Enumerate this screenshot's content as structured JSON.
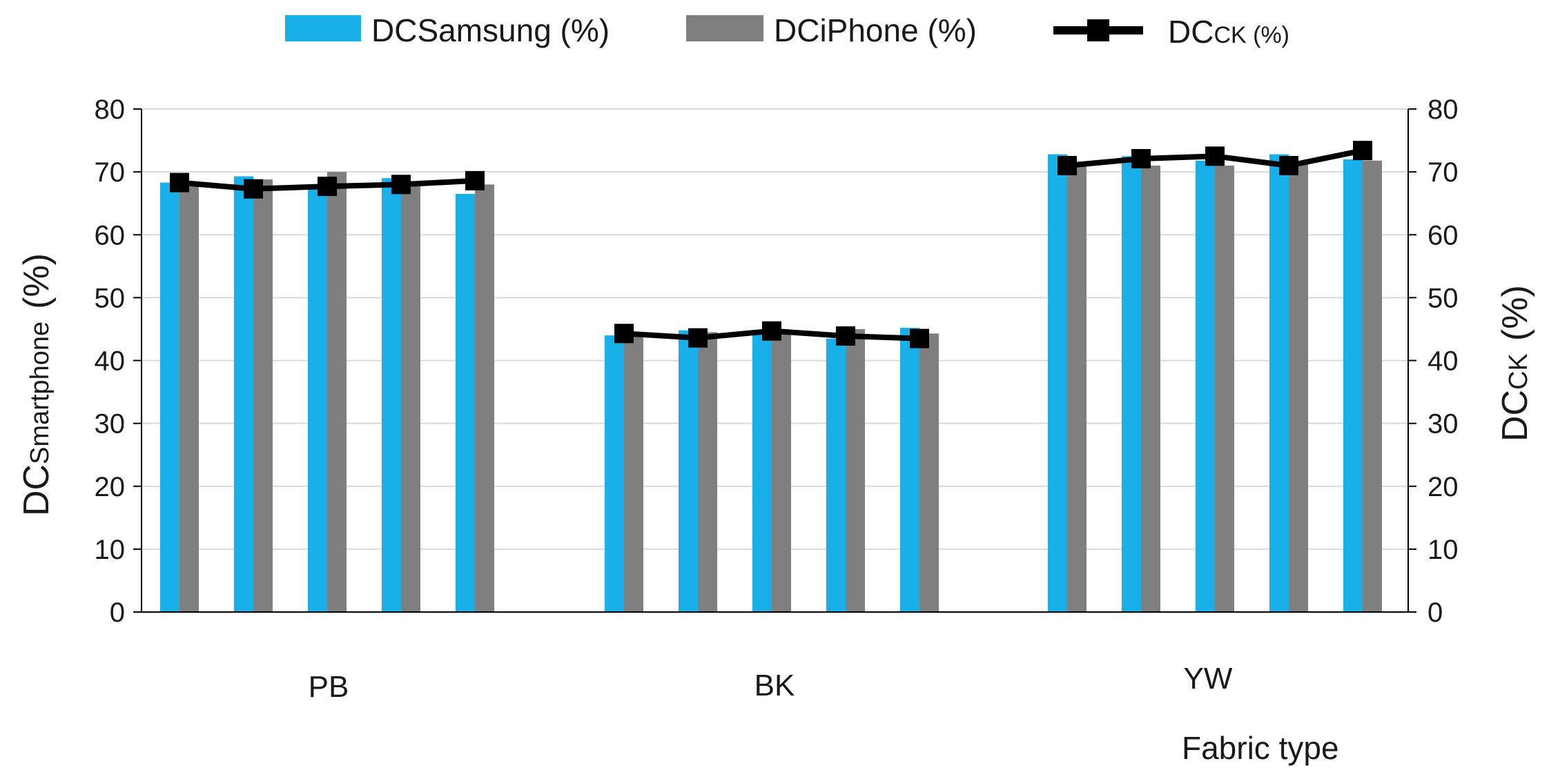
{
  "chart_data": {
    "type": "bar",
    "categories": [
      "PB",
      "BK",
      "YW"
    ],
    "bars_per_category": 5,
    "series": [
      {
        "name": "DCSamsung (%)",
        "type": "bar",
        "axis": "left",
        "color": "#19b0ea",
        "values": [
          [
            68.3,
            69.3,
            67.5,
            69.0,
            66.5
          ],
          [
            44.0,
            44.8,
            44.7,
            43.5,
            45.2
          ],
          [
            72.8,
            72.5,
            71.8,
            72.8,
            72.0
          ]
        ]
      },
      {
        "name": "DCiPhone (%)",
        "type": "bar",
        "axis": "left",
        "color": "#7f7f7f",
        "values": [
          [
            68.0,
            68.8,
            70.0,
            67.8,
            68.0
          ],
          [
            44.5,
            44.5,
            44.8,
            45.0,
            44.3
          ],
          [
            71.0,
            71.0,
            71.0,
            71.2,
            71.8
          ]
        ]
      },
      {
        "name": "DCCK (%)",
        "type": "line",
        "axis": "right",
        "color": "#000000",
        "marker": "square",
        "values": [
          [
            68.3,
            67.3,
            67.7,
            68.0,
            68.6
          ],
          [
            44.3,
            43.6,
            44.7,
            43.9,
            43.5
          ],
          [
            71.0,
            72.1,
            72.5,
            71.0,
            73.4
          ]
        ]
      }
    ],
    "legend": {
      "placement": "top",
      "items": [
        {
          "main": "DCSamsung (%)",
          "sub": ""
        },
        {
          "main": "DCiPhone (%)",
          "sub": ""
        },
        {
          "main": "DC",
          "sub": "CK (%)"
        }
      ]
    },
    "y_left": {
      "title_main": "DC",
      "title_sub": "Smartphone",
      "title_tail": "(%)",
      "ylim": [
        0,
        80
      ],
      "ticks": [
        "0",
        "10",
        "20",
        "30",
        "40",
        "50",
        "60",
        "70",
        "80"
      ]
    },
    "y_right": {
      "title_main": "DC",
      "title_sub": "CK",
      "title_tail": "(%)",
      "ylim": [
        0,
        80
      ],
      "ticks": [
        "0",
        "10",
        "20",
        "30",
        "40",
        "50",
        "60",
        "70",
        "80"
      ]
    },
    "xlabel": "Fabric type",
    "grid": "horizontal",
    "colors": {
      "samsung": "#19b0ea",
      "iphone": "#7f7f7f",
      "ck": "#000000",
      "grid": "#d9d9d9",
      "axis": "#000000"
    }
  }
}
